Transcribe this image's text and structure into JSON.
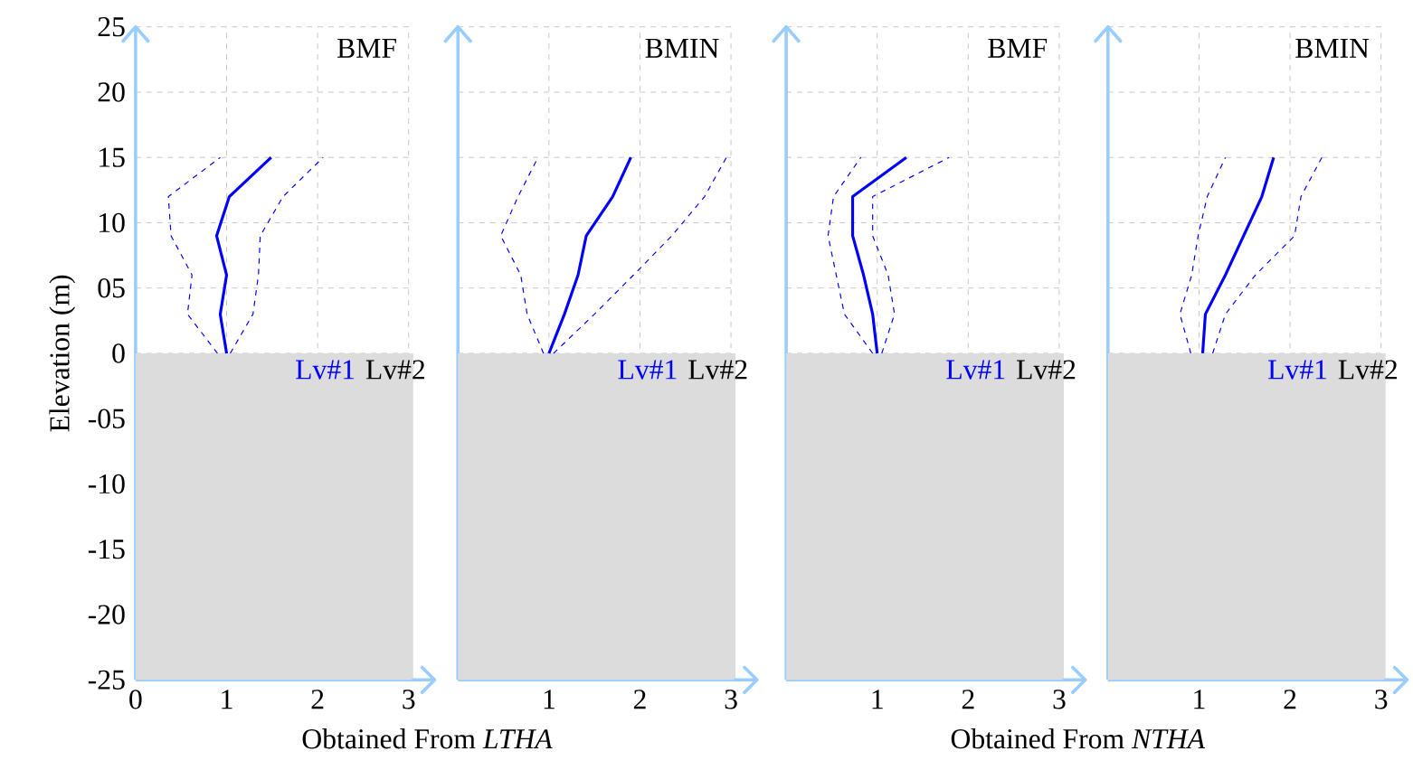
{
  "chart_data": [
    {
      "type": "line",
      "xlabel": "Obtained From *LTHA*",
      "ylabel": "Elevation (m)",
      "xlim": [
        0,
        3.05
      ],
      "ylim": [
        -25,
        25
      ],
      "xticks": [
        0,
        1,
        2,
        3
      ],
      "yticks": [
        -25,
        -20,
        -15,
        -10,
        {
          "value": -5,
          "label": "-05"
        },
        0,
        {
          "value": 5,
          "label": "05"
        },
        10,
        15,
        20,
        25
      ],
      "grid": true,
      "annotations": [
        "BMF",
        "Lv#1",
        "Lv#2"
      ],
      "bands": [
        {
          "axis": "y",
          "from": -25,
          "to": 0,
          "color": "#dcdcdc"
        }
      ],
      "series": [
        {
          "color": "#0000ff",
          "line_style": "solid",
          "x": [
            1.0,
            0.93,
            1.0,
            0.89,
            1.03,
            1.49
          ],
          "values": [
            0,
            3,
            6,
            9,
            12,
            15
          ]
        },
        {
          "color": "#0000ff",
          "line_style": "dashed",
          "x": [
            0.9,
            0.57,
            0.62,
            0.39,
            0.36,
            0.93
          ],
          "values": [
            0,
            3,
            6,
            9,
            12,
            15
          ]
        },
        {
          "color": "#0000ff",
          "line_style": "dashed",
          "x": [
            1.04,
            1.29,
            1.35,
            1.37,
            1.62,
            2.06
          ],
          "values": [
            0,
            3,
            6,
            9,
            12,
            15
          ]
        }
      ]
    },
    {
      "type": "line",
      "xlim": [
        0,
        3.05
      ],
      "ylim": [
        -25,
        25
      ],
      "xticks": [
        1,
        2,
        3
      ],
      "yticks": [
        0,
        5,
        10,
        15,
        20,
        25
      ],
      "tick_labels": "x",
      "grid": true,
      "annotations": [
        "BMIN",
        "Lv#1",
        "Lv#2"
      ],
      "bands": [
        {
          "axis": "y",
          "from": -25,
          "to": 0,
          "color": "#dcdcdc"
        }
      ],
      "series": [
        {
          "color": "#0000ff",
          "line_style": "solid",
          "x": [
            1.0,
            1.17,
            1.32,
            1.41,
            1.7,
            1.9
          ],
          "values": [
            0,
            3,
            6,
            9,
            12,
            15
          ]
        },
        {
          "color": "#0000ff",
          "line_style": "dashed",
          "x": [
            0.94,
            0.76,
            0.69,
            0.47,
            0.66,
            0.88
          ],
          "values": [
            0,
            3,
            6,
            9,
            12,
            15
          ]
        },
        {
          "color": "#0000ff",
          "line_style": "dashed",
          "x": [
            1.05,
            1.5,
            1.93,
            2.35,
            2.71,
            2.95
          ],
          "values": [
            0,
            3,
            6,
            9,
            12,
            15
          ]
        }
      ]
    },
    {
      "type": "line",
      "xlabel": "Obtained From *NTHA*",
      "xlim": [
        0,
        3.05
      ],
      "ylim": [
        -25,
        25
      ],
      "xticks": [
        1,
        2,
        3
      ],
      "yticks": [
        0,
        5,
        10,
        15,
        20,
        25
      ],
      "tick_labels": "x",
      "grid": true,
      "annotations": [
        "BMF",
        "Lv#1",
        "Lv#2"
      ],
      "bands": [
        {
          "axis": "y",
          "from": -25,
          "to": 0,
          "color": "#dcdcdc"
        }
      ],
      "series": [
        {
          "color": "#0000ff",
          "line_style": "solid",
          "x": [
            1.0,
            0.95,
            0.85,
            0.73,
            0.73,
            1.32
          ],
          "values": [
            0,
            3,
            6,
            9,
            12,
            15
          ]
        },
        {
          "color": "#0000ff",
          "line_style": "dashed",
          "x": [
            0.95,
            0.64,
            0.55,
            0.46,
            0.52,
            0.82
          ],
          "values": [
            0,
            3,
            6,
            9,
            12,
            15
          ]
        },
        {
          "color": "#0000ff",
          "line_style": "dashed",
          "x": [
            1.05,
            1.19,
            1.12,
            0.95,
            0.95,
            1.79
          ],
          "values": [
            0,
            3,
            6,
            9,
            12,
            15
          ]
        }
      ]
    },
    {
      "type": "line",
      "xlim": [
        0,
        3.05
      ],
      "ylim": [
        -25,
        25
      ],
      "xticks": [
        1,
        2,
        3
      ],
      "yticks": [
        0,
        5,
        10,
        15,
        20,
        25
      ],
      "tick_labels": "x",
      "grid": true,
      "annotations": [
        "BMIN",
        "Lv#1",
        "Lv#2"
      ],
      "bands": [
        {
          "axis": "y",
          "from": -25,
          "to": 0,
          "color": "#dcdcdc"
        }
      ],
      "series": [
        {
          "color": "#0000ff",
          "line_style": "solid",
          "x": [
            1.04,
            1.07,
            1.29,
            1.49,
            1.69,
            1.82
          ],
          "values": [
            0,
            3,
            6,
            9,
            12,
            15
          ]
        },
        {
          "color": "#0000ff",
          "line_style": "dashed",
          "x": [
            0.91,
            0.79,
            0.92,
            0.99,
            1.09,
            1.29
          ],
          "values": [
            0,
            3,
            6,
            9,
            12,
            15
          ]
        },
        {
          "color": "#0000ff",
          "line_style": "dashed",
          "x": [
            1.15,
            1.29,
            1.62,
            2.05,
            2.12,
            2.35
          ],
          "values": [
            0,
            3,
            6,
            9,
            12,
            15
          ]
        }
      ]
    }
  ]
}
